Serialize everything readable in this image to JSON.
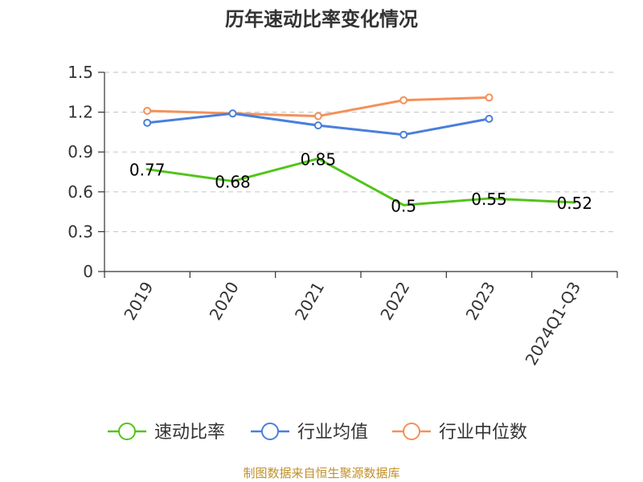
{
  "chart_data": {
    "type": "line",
    "title": "历年速动比率变化情况",
    "xlabel": "",
    "ylabel": "",
    "categories": [
      "2019",
      "2020",
      "2021",
      "2022",
      "2023",
      "2024Q1-Q3"
    ],
    "ylim": [
      0,
      1.5
    ],
    "yticks": [
      "0",
      "0.3",
      "0.6",
      "0.9",
      "1.2",
      "1.5"
    ],
    "grid": true,
    "legend_position": "bottom",
    "series": [
      {
        "name": "速动比率",
        "color": "#52c41a",
        "values": [
          0.77,
          0.68,
          0.85,
          0.5,
          0.55,
          0.52
        ],
        "labels": [
          "0.77",
          "0.68",
          "0.85",
          "0.5",
          "0.55",
          "0.52"
        ],
        "show_markers": false,
        "show_labels": true
      },
      {
        "name": "行业均值",
        "color": "#4a7fdc",
        "values": [
          1.12,
          1.19,
          1.1,
          1.03,
          1.15,
          null
        ],
        "show_markers": true,
        "show_labels": false
      },
      {
        "name": "行业中位数",
        "color": "#f5905a",
        "values": [
          1.21,
          1.19,
          1.17,
          1.29,
          1.31,
          null
        ],
        "show_markers": true,
        "show_labels": false
      }
    ]
  },
  "source_note": "制图数据来自恒生聚源数据库"
}
